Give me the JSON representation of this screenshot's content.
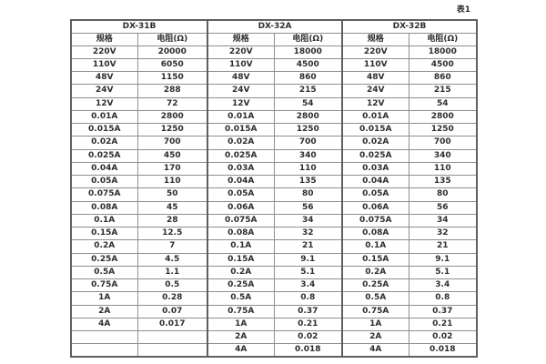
{
  "caption": "表1",
  "table": {
    "spec_header": "规格",
    "resistance_header": "电阻(Ω)",
    "groups": [
      {
        "name": "DX-31B",
        "rows": [
          [
            "220V",
            "20000"
          ],
          [
            "110V",
            "6050"
          ],
          [
            "48V",
            "1150"
          ],
          [
            "24V",
            "288"
          ],
          [
            "12V",
            "72"
          ],
          [
            "0.01A",
            "2800"
          ],
          [
            "0.015A",
            "1250"
          ],
          [
            "0.02A",
            "700"
          ],
          [
            "0.025A",
            "450"
          ],
          [
            "0.04A",
            "170"
          ],
          [
            "0.05A",
            "110"
          ],
          [
            "0.075A",
            "50"
          ],
          [
            "0.08A",
            "45"
          ],
          [
            "0.1A",
            "28"
          ],
          [
            "0.15A",
            "12.5"
          ],
          [
            "0.2A",
            "7"
          ],
          [
            "0.25A",
            "4.5"
          ],
          [
            "0.5A",
            "1.1"
          ],
          [
            "0.75A",
            "0.5"
          ],
          [
            "1A",
            "0.28"
          ],
          [
            "2A",
            "0.07"
          ],
          [
            "4A",
            "0.017"
          ],
          [
            "",
            ""
          ],
          [
            "",
            ""
          ]
        ]
      },
      {
        "name": "DX-32A",
        "rows": [
          [
            "220V",
            "18000"
          ],
          [
            "110V",
            "4500"
          ],
          [
            "48V",
            "860"
          ],
          [
            "24V",
            "215"
          ],
          [
            "12V",
            "54"
          ],
          [
            "0.01A",
            "2800"
          ],
          [
            "0.015A",
            "1250"
          ],
          [
            "0.02A",
            "700"
          ],
          [
            "0.025A",
            "340"
          ],
          [
            "0.03A",
            "110"
          ],
          [
            "0.04A",
            "135"
          ],
          [
            "0.05A",
            "80"
          ],
          [
            "0.06A",
            "56"
          ],
          [
            "0.075A",
            "34"
          ],
          [
            "0.08A",
            "32"
          ],
          [
            "0.1A",
            "21"
          ],
          [
            "0.15A",
            "9.1"
          ],
          [
            "0.2A",
            "5.1"
          ],
          [
            "0.25A",
            "3.4"
          ],
          [
            "0.5A",
            "0.8"
          ],
          [
            "0.75A",
            "0.37"
          ],
          [
            "1A",
            "0.21"
          ],
          [
            "2A",
            "0.02"
          ],
          [
            "4A",
            "0.018"
          ]
        ]
      },
      {
        "name": "DX-32B",
        "rows": [
          [
            "220V",
            "18000"
          ],
          [
            "110V",
            "4500"
          ],
          [
            "48V",
            "860"
          ],
          [
            "24V",
            "215"
          ],
          [
            "12V",
            "54"
          ],
          [
            "0.01A",
            "2800"
          ],
          [
            "0.015A",
            "1250"
          ],
          [
            "0.02A",
            "700"
          ],
          [
            "0.025A",
            "340"
          ],
          [
            "0.03A",
            "110"
          ],
          [
            "0.04A",
            "135"
          ],
          [
            "0.05A",
            "80"
          ],
          [
            "0.06A",
            "56"
          ],
          [
            "0.075A",
            "34"
          ],
          [
            "0.08A",
            "32"
          ],
          [
            "0.1A",
            "21"
          ],
          [
            "0.15A",
            "9.1"
          ],
          [
            "0.2A",
            "5.1"
          ],
          [
            "0.25A",
            "3.4"
          ],
          [
            "0.5A",
            "0.8"
          ],
          [
            "0.75A",
            "0.37"
          ],
          [
            "1A",
            "0.21"
          ],
          [
            "2A",
            "0.02"
          ],
          [
            "4A",
            "0.018"
          ]
        ]
      }
    ]
  }
}
